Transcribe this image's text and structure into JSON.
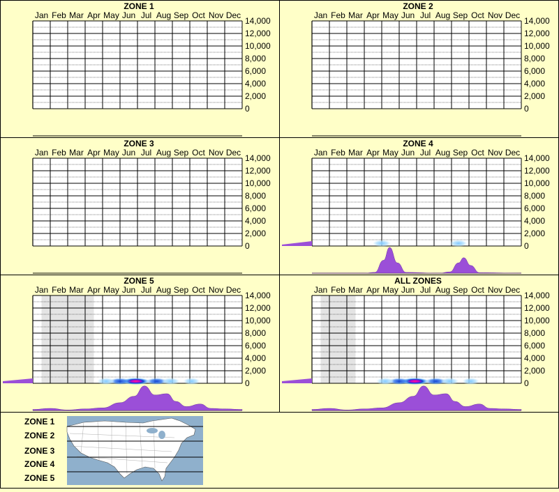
{
  "months": [
    "Jan",
    "Feb",
    "Mar",
    "Apr",
    "May",
    "Jun",
    "Jul",
    "Aug",
    "Sep",
    "Oct",
    "Nov",
    "Dec"
  ],
  "y_ticks": [
    "14,000",
    "12,000",
    "10,000",
    "8,000",
    "6,000",
    "4,000",
    "2,000",
    "0"
  ],
  "colors": {
    "background": "#ffffc8",
    "grid": "#000000",
    "shade": "#e4e4e4",
    "distribution": "#9b4fd8",
    "heat_low": "#a8dcff",
    "heat_mid": "#1040d0",
    "heat_high": "#ff2080",
    "map_water": "#8fb0cc",
    "map_land": "#ffffff"
  },
  "chart_data": [
    {
      "type": "heatmap",
      "title": "ZONE 1",
      "x_categories": [
        "Jan",
        "Feb",
        "Mar",
        "Apr",
        "May",
        "Jun",
        "Jul",
        "Aug",
        "Sep",
        "Oct",
        "Nov",
        "Dec"
      ],
      "ylabel": "",
      "ylim": [
        0,
        14000
      ],
      "shaded_months": [],
      "heat": [],
      "month_distribution": [],
      "elevation_distribution": []
    },
    {
      "type": "heatmap",
      "title": "ZONE 2",
      "x_categories": [
        "Jan",
        "Feb",
        "Mar",
        "Apr",
        "May",
        "Jun",
        "Jul",
        "Aug",
        "Sep",
        "Oct",
        "Nov",
        "Dec"
      ],
      "ylabel": "",
      "ylim": [
        0,
        14000
      ],
      "shaded_months": [],
      "heat": [],
      "month_distribution": [],
      "elevation_distribution": []
    },
    {
      "type": "heatmap",
      "title": "ZONE 3",
      "x_categories": [
        "Jan",
        "Feb",
        "Mar",
        "Apr",
        "May",
        "Jun",
        "Jul",
        "Aug",
        "Sep",
        "Oct",
        "Nov",
        "Dec"
      ],
      "ylabel": "",
      "ylim": [
        0,
        14000
      ],
      "shaded_months": [],
      "heat": [],
      "month_distribution": [],
      "elevation_distribution": []
    },
    {
      "type": "heatmap",
      "title": "ZONE 4",
      "x_categories": [
        "Jan",
        "Feb",
        "Mar",
        "Apr",
        "May",
        "Jun",
        "Jul",
        "Aug",
        "Sep",
        "Oct",
        "Nov",
        "Dec"
      ],
      "ylabel": "",
      "ylim": [
        0,
        14000
      ],
      "shaded_months": [],
      "heat": [
        {
          "month": 4.5,
          "elevation": 200,
          "intensity": 0.3
        },
        {
          "month": 8.9,
          "elevation": 200,
          "intensity": 0.25
        }
      ],
      "month_distribution": [
        [
          0,
          0
        ],
        [
          3,
          0
        ],
        [
          3.6,
          0.03
        ],
        [
          4.1,
          0.5
        ],
        [
          4.45,
          1.0
        ],
        [
          4.9,
          0.4
        ],
        [
          5.4,
          0.03
        ],
        [
          7.3,
          0
        ],
        [
          7.9,
          0.05
        ],
        [
          8.4,
          0.4
        ],
        [
          8.7,
          0.6
        ],
        [
          9.1,
          0.3
        ],
        [
          9.6,
          0.02
        ],
        [
          12,
          0
        ]
      ],
      "elevation_distribution": [
        0,
        0.25,
        0.5
      ]
    },
    {
      "type": "heatmap",
      "title": "ZONE 5",
      "x_categories": [
        "Jan",
        "Feb",
        "Mar",
        "Apr",
        "May",
        "Jun",
        "Jul",
        "Aug",
        "Sep",
        "Oct",
        "Nov",
        "Dec"
      ],
      "ylabel": "",
      "ylim": [
        0,
        14000
      ],
      "shaded_months": [
        1,
        2,
        3
      ],
      "heat": [
        {
          "month": 6.4,
          "elevation": 100,
          "intensity": 1.0
        },
        {
          "month": 5.5,
          "elevation": 100,
          "intensity": 0.55
        },
        {
          "month": 7.6,
          "elevation": 100,
          "intensity": 0.55
        },
        {
          "month": 4.7,
          "elevation": 100,
          "intensity": 0.3
        },
        {
          "month": 8.4,
          "elevation": 100,
          "intensity": 0.3
        },
        {
          "month": 9.6,
          "elevation": 100,
          "intensity": 0.2
        }
      ],
      "month_distribution": [
        [
          0,
          0.04
        ],
        [
          1,
          0.08
        ],
        [
          2,
          0.02
        ],
        [
          3,
          0.06
        ],
        [
          4,
          0.1
        ],
        [
          5,
          0.3
        ],
        [
          5.8,
          0.55
        ],
        [
          6.4,
          0.95
        ],
        [
          7,
          0.6
        ],
        [
          7.7,
          0.65
        ],
        [
          8.2,
          0.35
        ],
        [
          8.8,
          0.15
        ],
        [
          9.6,
          0.25
        ],
        [
          10.2,
          0.08
        ],
        [
          11,
          0.06
        ],
        [
          12,
          0.04
        ]
      ],
      "elevation_distribution": [
        0.25,
        0.45,
        0.5
      ]
    },
    {
      "type": "heatmap",
      "title": "ALL ZONES",
      "x_categories": [
        "Jan",
        "Feb",
        "Mar",
        "Apr",
        "May",
        "Jun",
        "Jul",
        "Aug",
        "Sep",
        "Oct",
        "Nov",
        "Dec"
      ],
      "ylabel": "",
      "ylim": [
        0,
        14000
      ],
      "shaded_months": [
        1,
        2
      ],
      "heat": [
        {
          "month": 6.4,
          "elevation": 100,
          "intensity": 1.0
        },
        {
          "month": 5.5,
          "elevation": 100,
          "intensity": 0.55
        },
        {
          "month": 7.6,
          "elevation": 100,
          "intensity": 0.55
        },
        {
          "month": 4.7,
          "elevation": 100,
          "intensity": 0.3
        },
        {
          "month": 8.4,
          "elevation": 100,
          "intensity": 0.3
        },
        {
          "month": 9.6,
          "elevation": 100,
          "intensity": 0.2
        }
      ],
      "month_distribution": [
        [
          0,
          0.04
        ],
        [
          1,
          0.08
        ],
        [
          2,
          0.02
        ],
        [
          3,
          0.06
        ],
        [
          4,
          0.1
        ],
        [
          5,
          0.3
        ],
        [
          5.8,
          0.55
        ],
        [
          6.4,
          0.95
        ],
        [
          7,
          0.6
        ],
        [
          7.7,
          0.65
        ],
        [
          8.2,
          0.35
        ],
        [
          8.8,
          0.15
        ],
        [
          9.6,
          0.25
        ],
        [
          10.2,
          0.08
        ],
        [
          11,
          0.06
        ],
        [
          12,
          0.04
        ]
      ],
      "elevation_distribution": [
        0.25,
        0.45,
        0.5
      ]
    }
  ],
  "legend": {
    "zones": [
      "ZONE 1",
      "ZONE 2",
      "ZONE 3",
      "ZONE 4",
      "ZONE 5"
    ]
  }
}
